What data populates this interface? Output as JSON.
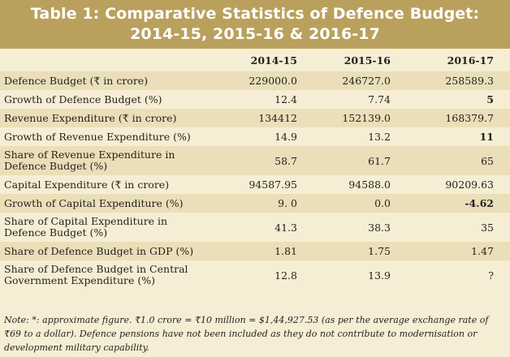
{
  "title": {
    "line1": "Table 1: Comparative Statistics of Defence Budget:",
    "line2": "2014-15, 2015-16 & 2016-17"
  },
  "table": {
    "headers": [
      "",
      "2014-15",
      "2015-16",
      "2016-17"
    ],
    "rows": [
      {
        "label": "Defence Budget (₹ in crore)",
        "v1": "229000.0",
        "v2": "246727.0",
        "v3": "258589.3",
        "bold3": false
      },
      {
        "label": "Growth of Defence Budget (%)",
        "v1": "12.4",
        "v2": "7.74",
        "v3": "5",
        "bold3": true
      },
      {
        "label": "Revenue Expenditure (₹ in crore)",
        "v1": "134412",
        "v2": "152139.0",
        "v3": "168379.7",
        "bold3": false
      },
      {
        "label": "Growth of Revenue Expenditure (%)",
        "v1": "14.9",
        "v2": "13.2",
        "v3": "11",
        "bold3": true
      },
      {
        "label": "Share of Revenue Expenditure in Defence Budget (%)",
        "v1": "58.7",
        "v2": "61.7",
        "v3": "65",
        "bold3": false
      },
      {
        "label": "Capital Expenditure (₹ in crore)",
        "v1": "94587.95",
        "v2": "94588.0",
        "v3": "90209.63",
        "bold3": false
      },
      {
        "label": "Growth of Capital Expenditure (%)",
        "v1": "9. 0",
        "v2": "0.0",
        "v3": "-4.62",
        "bold3": true
      },
      {
        "label": "Share of Capital Expenditure in Defence Budget (%)",
        "v1": "41.3",
        "v2": "38.3",
        "v3": "35",
        "bold3": false
      },
      {
        "label": "Share of Defence Budget in GDP (%)",
        "v1": "1.81",
        "v2": "1.75",
        "v3": "1.47",
        "bold3": false
      },
      {
        "label": "Share of Defence Budget in Central Government Expenditure (%)",
        "v1": "12.8",
        "v2": "13.9",
        "v3": "?",
        "bold3": false
      }
    ]
  },
  "note": "Note: *: approximate figure. ₹1.0 crore = ₹10 million = $1,44,927.53 (as per the average exchange rate of ₹69 to a dollar). Defence pensions have not been included as they do not contribute to modernisation or development military capability."
}
